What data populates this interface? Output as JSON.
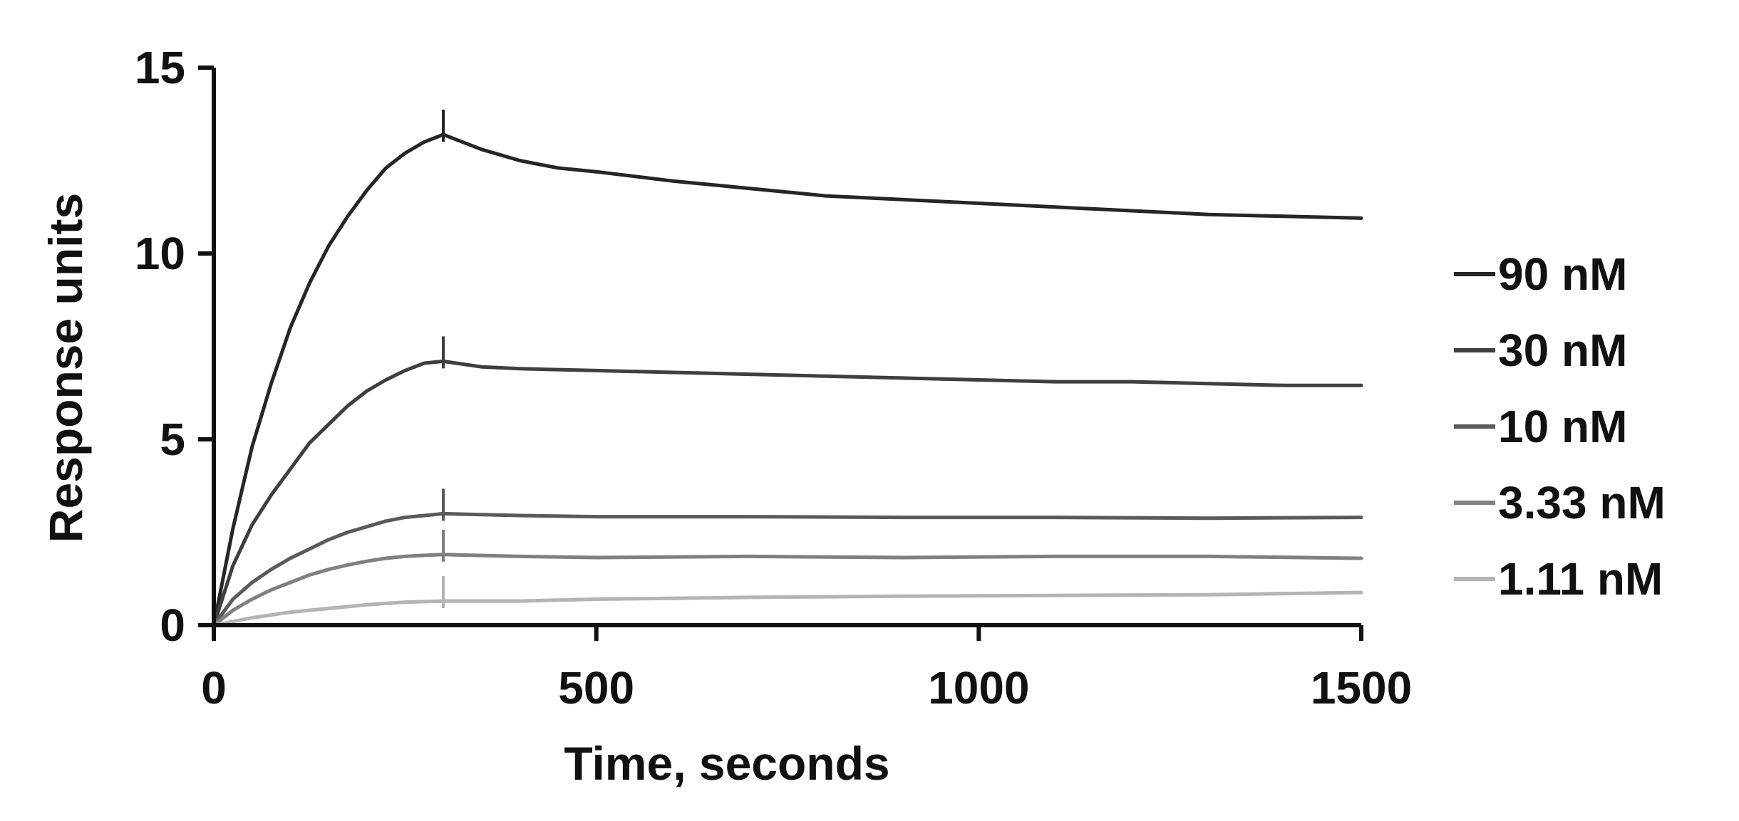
{
  "chart_data": {
    "type": "line",
    "title": "",
    "xlabel": "Time, seconds",
    "ylabel": "Response units",
    "xlim": [
      0,
      1500
    ],
    "ylim": [
      0,
      15
    ],
    "xticks": [
      0,
      500,
      1000,
      1500
    ],
    "xtick_labels": [
      "0",
      "500",
      "1000",
      "1500"
    ],
    "yticks": [
      0,
      5,
      10,
      15
    ],
    "ytick_labels": [
      "0",
      "5",
      "10",
      "15"
    ],
    "grid": false,
    "legend_position": "right",
    "injection_end": 300,
    "series": [
      {
        "name": "90 nM",
        "color": "#262626",
        "x": [
          0,
          25,
          50,
          75,
          100,
          125,
          150,
          175,
          200,
          225,
          250,
          275,
          300,
          350,
          400,
          450,
          500,
          600,
          700,
          800,
          900,
          1000,
          1100,
          1200,
          1300,
          1400,
          1500
        ],
        "y": [
          0,
          2.6,
          4.8,
          6.5,
          8.0,
          9.2,
          10.2,
          11.0,
          11.7,
          12.3,
          12.7,
          13.0,
          13.2,
          12.8,
          12.5,
          12.3,
          12.2,
          11.95,
          11.75,
          11.55,
          11.45,
          11.35,
          11.25,
          11.15,
          11.05,
          11.0,
          10.95
        ]
      },
      {
        "name": "30 nM",
        "color": "#3f3f3f",
        "x": [
          0,
          25,
          50,
          75,
          100,
          125,
          150,
          175,
          200,
          225,
          250,
          275,
          300,
          350,
          400,
          500,
          600,
          700,
          800,
          900,
          1000,
          1100,
          1200,
          1300,
          1400,
          1500
        ],
        "y": [
          0,
          1.6,
          2.7,
          3.5,
          4.2,
          4.9,
          5.4,
          5.9,
          6.3,
          6.6,
          6.85,
          7.05,
          7.1,
          6.95,
          6.9,
          6.85,
          6.8,
          6.75,
          6.7,
          6.65,
          6.6,
          6.55,
          6.55,
          6.5,
          6.45,
          6.45
        ]
      },
      {
        "name": "10 nM",
        "color": "#5a5a5a",
        "x": [
          0,
          25,
          50,
          75,
          100,
          125,
          150,
          175,
          200,
          225,
          250,
          275,
          300,
          400,
          500,
          700,
          900,
          1100,
          1300,
          1500
        ],
        "y": [
          0,
          0.7,
          1.15,
          1.5,
          1.8,
          2.05,
          2.3,
          2.5,
          2.65,
          2.8,
          2.9,
          2.95,
          3.0,
          2.95,
          2.92,
          2.92,
          2.9,
          2.9,
          2.88,
          2.9
        ]
      },
      {
        "name": "3.33 nM",
        "color": "#808080",
        "x": [
          0,
          25,
          50,
          75,
          100,
          125,
          150,
          175,
          200,
          225,
          250,
          275,
          300,
          400,
          500,
          700,
          900,
          1100,
          1300,
          1500
        ],
        "y": [
          0,
          0.4,
          0.7,
          0.95,
          1.15,
          1.35,
          1.5,
          1.62,
          1.72,
          1.8,
          1.85,
          1.88,
          1.9,
          1.85,
          1.82,
          1.85,
          1.82,
          1.85,
          1.85,
          1.8
        ]
      },
      {
        "name": "1.11 nM",
        "color": "#b4b4b4",
        "x": [
          0,
          50,
          100,
          150,
          200,
          250,
          300,
          400,
          500,
          700,
          900,
          1100,
          1300,
          1500
        ],
        "y": [
          0,
          0.2,
          0.35,
          0.45,
          0.55,
          0.62,
          0.65,
          0.65,
          0.7,
          0.75,
          0.78,
          0.8,
          0.82,
          0.88
        ]
      }
    ]
  }
}
